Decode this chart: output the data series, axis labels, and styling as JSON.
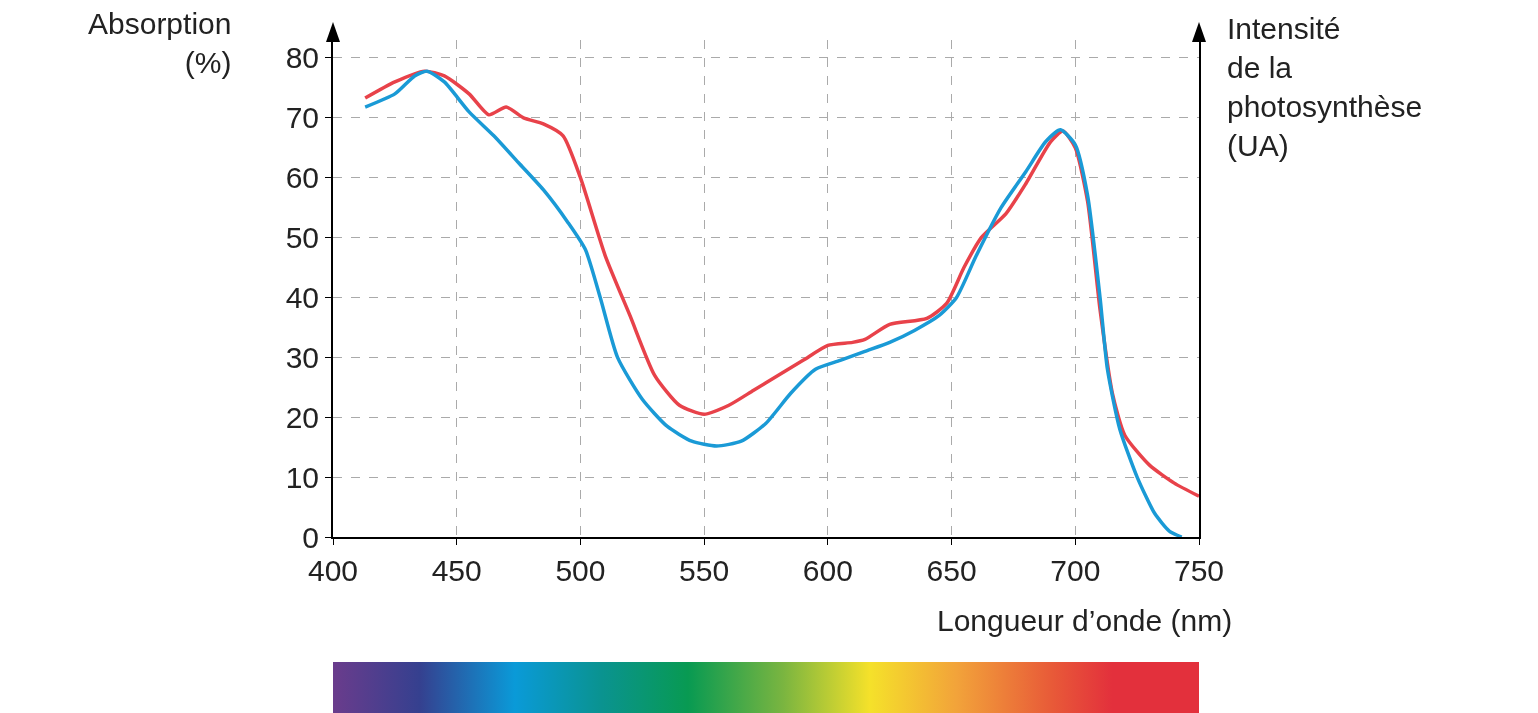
{
  "chart_data": {
    "type": "line",
    "ylabel": "Absorption\n(%)",
    "y2label": "Intensité\nde la\nphotosynthèse\n(UA)",
    "xlabel": "Longueur d’onde (nm)",
    "xlim": [
      400,
      750
    ],
    "xticks": [
      400,
      450,
      500,
      550,
      600,
      650,
      700,
      750
    ],
    "ylim": [
      0,
      83
    ],
    "yticks": [
      0,
      10,
      20,
      30,
      40,
      50,
      60,
      70,
      80
    ],
    "grid": true,
    "marker": "none",
    "line_style": "solid",
    "series": [
      {
        "color": "#e8424a",
        "x": [
          413,
          425,
          437,
          445,
          455,
          463,
          470,
          477,
          485,
          493,
          500,
          510,
          520,
          530,
          540,
          550,
          560,
          570,
          580,
          590,
          600,
          610,
          615,
          625,
          640,
          648,
          655,
          662,
          672,
          680,
          690,
          695,
          700,
          705,
          710,
          715,
          720,
          730,
          740,
          750
        ],
        "values": [
          73.3,
          76,
          77.8,
          77,
          74,
          70.5,
          71.8,
          70,
          69,
          67,
          60,
          47,
          37,
          27,
          22,
          20.5,
          22,
          24.5,
          27,
          29.5,
          32,
          32.5,
          33,
          35.5,
          36.5,
          39,
          45,
          50,
          54,
          59,
          66,
          67.8,
          65,
          56,
          38,
          24,
          17,
          12,
          9,
          6.8
        ]
      },
      {
        "color": "#1a9ad6",
        "x": [
          413,
          425,
          433,
          438,
          445,
          455,
          465,
          475,
          485,
          495,
          502,
          508,
          515,
          525,
          535,
          545,
          555,
          565,
          575,
          585,
          595,
          605,
          615,
          625,
          635,
          645,
          652,
          660,
          670,
          680,
          688,
          694,
          700,
          705,
          710,
          713,
          718,
          725,
          732,
          738,
          743
        ],
        "values": [
          71.8,
          74,
          77,
          77.8,
          76,
          71,
          67,
          62.5,
          58,
          52.5,
          48,
          40,
          30,
          23,
          18.5,
          16,
          15.2,
          16,
          19,
          24,
          28,
          29.5,
          31,
          32.5,
          34.5,
          37,
          40,
          47,
          55,
          61,
          66,
          68,
          65.5,
          57,
          40,
          28,
          18,
          10,
          4,
          1,
          0
        ]
      }
    ]
  }
}
